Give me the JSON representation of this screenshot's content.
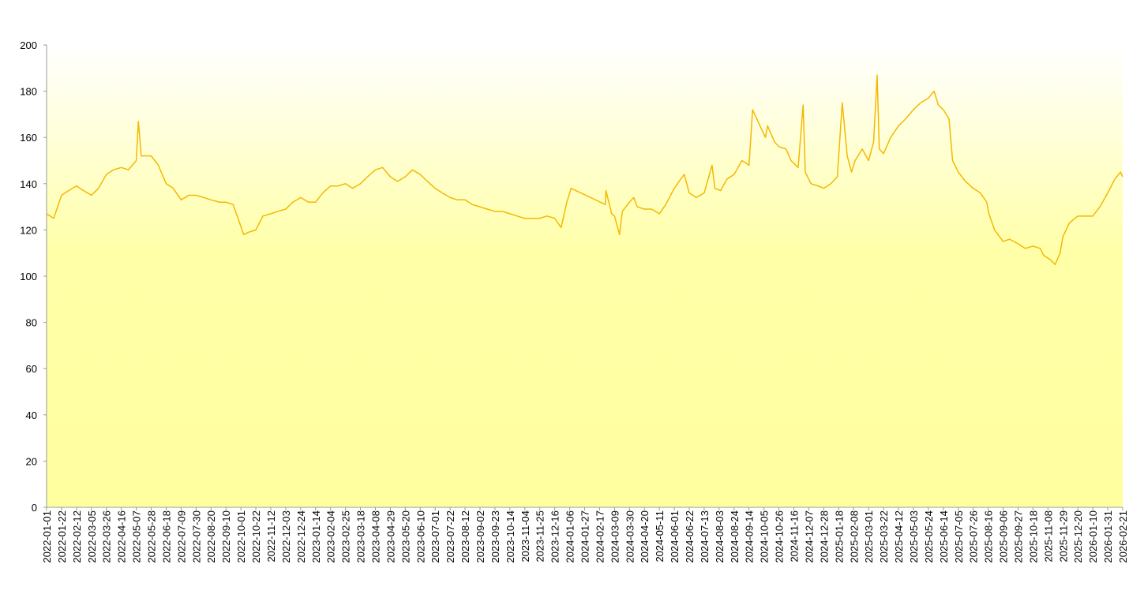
{
  "chart_data": {
    "type": "line",
    "x": [
      "2022-01-01",
      "2022-01-11",
      "2022-01-22",
      "2022-02-01",
      "2022-02-12",
      "2022-02-22",
      "2022-03-05",
      "2022-03-15",
      "2022-03-26",
      "2022-04-05",
      "2022-04-16",
      "2022-04-26",
      "2022-05-07",
      "2022-05-10",
      "2022-05-14",
      "2022-05-28",
      "2022-06-07",
      "2022-06-18",
      "2022-06-28",
      "2022-07-09",
      "2022-07-20",
      "2022-07-30",
      "2022-08-10",
      "2022-08-20",
      "2022-09-01",
      "2022-09-10",
      "2022-09-20",
      "2022-09-27",
      "2022-10-05",
      "2022-10-12",
      "2022-10-22",
      "2022-11-01",
      "2022-11-12",
      "2022-11-22",
      "2022-12-03",
      "2022-12-13",
      "2022-12-24",
      "2023-01-04",
      "2023-01-14",
      "2023-01-24",
      "2023-02-04",
      "2023-02-14",
      "2023-02-25",
      "2023-03-07",
      "2023-03-18",
      "2023-03-28",
      "2023-04-08",
      "2023-04-18",
      "2023-04-29",
      "2023-05-09",
      "2023-05-20",
      "2023-05-30",
      "2023-06-10",
      "2023-06-20",
      "2023-07-01",
      "2023-07-11",
      "2023-07-22",
      "2023-08-01",
      "2023-08-12",
      "2023-08-22",
      "2023-09-02",
      "2023-09-12",
      "2023-09-23",
      "2023-10-03",
      "2023-10-14",
      "2023-10-24",
      "2023-11-04",
      "2023-11-14",
      "2023-11-25",
      "2023-12-05",
      "2023-12-16",
      "2023-12-25",
      "2024-01-02",
      "2024-01-08",
      "2024-02-25",
      "2024-02-26",
      "2024-03-05",
      "2024-03-09",
      "2024-03-16",
      "2024-03-20",
      "2024-03-30",
      "2024-04-05",
      "2024-04-10",
      "2024-04-20",
      "2024-04-30",
      "2024-05-11",
      "2024-05-20",
      "2024-06-01",
      "2024-06-10",
      "2024-06-15",
      "2024-06-22",
      "2024-07-02",
      "2024-07-13",
      "2024-07-24",
      "2024-07-28",
      "2024-08-05",
      "2024-08-14",
      "2024-08-24",
      "2024-09-04",
      "2024-09-14",
      "2024-09-19",
      "2024-10-07",
      "2024-10-10",
      "2024-10-20",
      "2024-10-26",
      "2024-11-05",
      "2024-11-12",
      "2024-11-22",
      "2024-11-29",
      "2024-12-02",
      "2024-12-10",
      "2024-12-20",
      "2024-12-28",
      "2025-01-07",
      "2025-01-16",
      "2025-01-23",
      "2025-01-30",
      "2025-02-05",
      "2025-02-10",
      "2025-02-20",
      "2025-03-01",
      "2025-03-08",
      "2025-03-13",
      "2025-03-16",
      "2025-03-22",
      "2025-04-01",
      "2025-04-12",
      "2025-04-22",
      "2025-05-03",
      "2025-05-13",
      "2025-05-24",
      "2025-06-01",
      "2025-06-07",
      "2025-06-14",
      "2025-06-22",
      "2025-06-27",
      "2025-07-05",
      "2025-07-15",
      "2025-07-26",
      "2025-08-05",
      "2025-08-14",
      "2025-08-17",
      "2025-08-25",
      "2025-09-06",
      "2025-09-15",
      "2025-09-27",
      "2025-10-07",
      "2025-10-18",
      "2025-10-28",
      "2025-11-02",
      "2025-11-12",
      "2025-11-18",
      "2025-11-25",
      "2025-11-29",
      "2025-12-08",
      "2025-12-20",
      "2025-12-30",
      "2026-01-10",
      "2026-01-20",
      "2026-01-31",
      "2026-02-10",
      "2026-02-18",
      "2026-02-21"
    ],
    "series": [
      {
        "color": "#f5b800",
        "values": [
          127,
          125,
          135,
          137,
          139,
          137,
          135,
          138,
          144,
          146,
          147,
          146,
          150,
          167,
          152,
          152,
          148,
          140,
          138,
          133,
          135,
          135,
          134,
          133,
          132,
          132,
          131,
          125,
          118,
          119,
          120,
          126,
          127,
          128,
          129,
          132,
          134,
          132,
          132,
          136,
          139,
          139,
          140,
          138,
          140,
          143,
          146,
          147,
          143,
          141,
          143,
          146,
          144,
          141,
          138,
          136,
          134,
          133,
          133,
          131,
          130,
          129,
          128,
          128,
          127,
          126,
          125,
          125,
          125,
          126,
          125,
          121,
          132,
          138,
          131,
          137,
          127,
          126,
          118,
          128,
          132,
          134,
          130,
          129,
          129,
          127,
          131,
          138,
          142,
          144,
          136,
          134,
          136,
          148,
          138,
          137,
          142,
          144,
          150,
          148,
          172,
          160,
          165,
          158,
          156,
          155,
          150,
          147,
          174,
          145,
          140,
          139,
          138,
          140,
          143,
          175,
          152,
          145,
          150,
          155,
          150,
          158,
          187,
          155,
          153,
          160,
          165,
          168,
          172,
          175,
          177,
          180,
          174,
          172,
          168,
          150,
          145,
          141,
          138,
          136,
          132,
          127,
          120,
          115,
          116,
          114,
          112,
          113,
          112,
          109,
          107,
          105,
          110,
          117,
          123,
          126,
          126,
          126,
          130,
          136,
          142,
          145,
          143
        ]
      }
    ],
    "xlim": [
      "2022-01-01",
      "2026-02-21"
    ],
    "xticks": [
      "2022-01-01",
      "2022-01-22",
      "2022-02-12",
      "2022-03-05",
      "2022-03-26",
      "2022-04-16",
      "2022-05-07",
      "2022-05-28",
      "2022-06-18",
      "2022-07-09",
      "2022-07-30",
      "2022-08-20",
      "2022-09-10",
      "2022-10-01",
      "2022-10-22",
      "2022-11-12",
      "2022-12-03",
      "2022-12-24",
      "2023-01-14",
      "2023-02-04",
      "2023-02-25",
      "2023-03-18",
      "2023-04-08",
      "2023-04-29",
      "2023-05-20",
      "2023-06-10",
      "2023-07-01",
      "2023-07-22",
      "2023-08-12",
      "2023-09-02",
      "2023-09-23",
      "2023-10-14",
      "2023-11-04",
      "2023-11-25",
      "2023-12-16",
      "2024-01-06",
      "2024-01-27",
      "2024-02-17",
      "2024-03-09",
      "2024-03-30",
      "2024-04-20",
      "2024-05-11",
      "2024-06-01",
      "2024-06-22",
      "2024-07-13",
      "2024-08-03",
      "2024-08-24",
      "2024-09-14",
      "2024-10-05",
      "2024-10-26",
      "2024-11-16",
      "2024-12-07",
      "2024-12-28",
      "2025-01-18",
      "2025-02-08",
      "2025-03-01",
      "2025-03-22",
      "2025-04-12",
      "2025-05-03",
      "2025-05-24",
      "2025-06-14",
      "2025-07-05",
      "2025-07-26",
      "2025-08-16",
      "2025-09-06",
      "2025-09-27",
      "2025-10-18",
      "2025-11-08",
      "2025-11-29",
      "2025-12-20",
      "2026-01-10",
      "2026-01-31",
      "2026-02-21"
    ],
    "ylim": [
      0,
      200
    ],
    "yticks": [
      0,
      20,
      40,
      60,
      80,
      100,
      120,
      140,
      160,
      180,
      200
    ]
  }
}
